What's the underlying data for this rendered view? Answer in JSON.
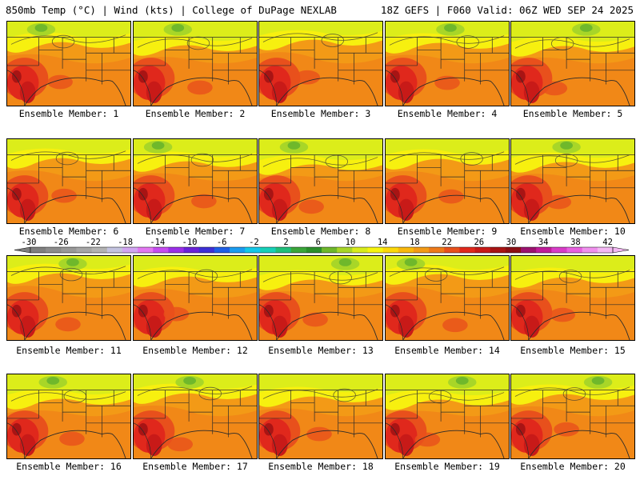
{
  "header": {
    "left": "850mb Temp (°C) | Wind (kts) | College of DuPage NEXLAB",
    "right": "18Z GEFS | F060 Valid: 06Z WED SEP 24 2025"
  },
  "panels": [
    {
      "label": "Ensemble Member: 1"
    },
    {
      "label": "Ensemble Member: 2"
    },
    {
      "label": "Ensemble Member: 3"
    },
    {
      "label": "Ensemble Member: 4"
    },
    {
      "label": "Ensemble Member: 5"
    },
    {
      "label": "Ensemble Member: 6"
    },
    {
      "label": "Ensemble Member: 7"
    },
    {
      "label": "Ensemble Member: 8"
    },
    {
      "label": "Ensemble Member: 9"
    },
    {
      "label": "Ensemble Member: 10"
    },
    {
      "label": "Ensemble Member: 11"
    },
    {
      "label": "Ensemble Member: 12"
    },
    {
      "label": "Ensemble Member: 13"
    },
    {
      "label": "Ensemble Member: 14"
    },
    {
      "label": "Ensemble Member: 15"
    },
    {
      "label": "Ensemble Member: 16"
    },
    {
      "label": "Ensemble Member: 17"
    },
    {
      "label": "Ensemble Member: 18"
    },
    {
      "label": "Ensemble Member: 19"
    },
    {
      "label": "Ensemble Member: 20"
    }
  ],
  "colorbar": {
    "ticks": [
      "-30",
      "-26",
      "-22",
      "-18",
      "-14",
      "-10",
      "-6",
      "-2",
      "2",
      "6",
      "10",
      "14",
      "18",
      "22",
      "26",
      "30",
      "34",
      "38",
      "42"
    ],
    "colors": [
      "#7f7f7f",
      "#8c8c8c",
      "#999999",
      "#a6a6a6",
      "#b3b3b3",
      "#c4c4e0",
      "#d2a6f2",
      "#e277f2",
      "#c64cf0",
      "#9a2fe8",
      "#6a22d8",
      "#3d2fd6",
      "#1f5fe6",
      "#1b9cf0",
      "#14c8e8",
      "#17d0b8",
      "#1fbf7a",
      "#3aa63a",
      "#2b8f2b",
      "#6fb82b",
      "#a8d628",
      "#d8ec1c",
      "#f7f40f",
      "#fcd80a",
      "#f9b80d",
      "#f39a16",
      "#ee7a1a",
      "#e8501c",
      "#e0281c",
      "#c81a18",
      "#a81414",
      "#8c0f14",
      "#9c1270",
      "#c01c9a",
      "#d83cc8",
      "#e860e0",
      "#f090ee",
      "#f4b8f4"
    ]
  }
}
